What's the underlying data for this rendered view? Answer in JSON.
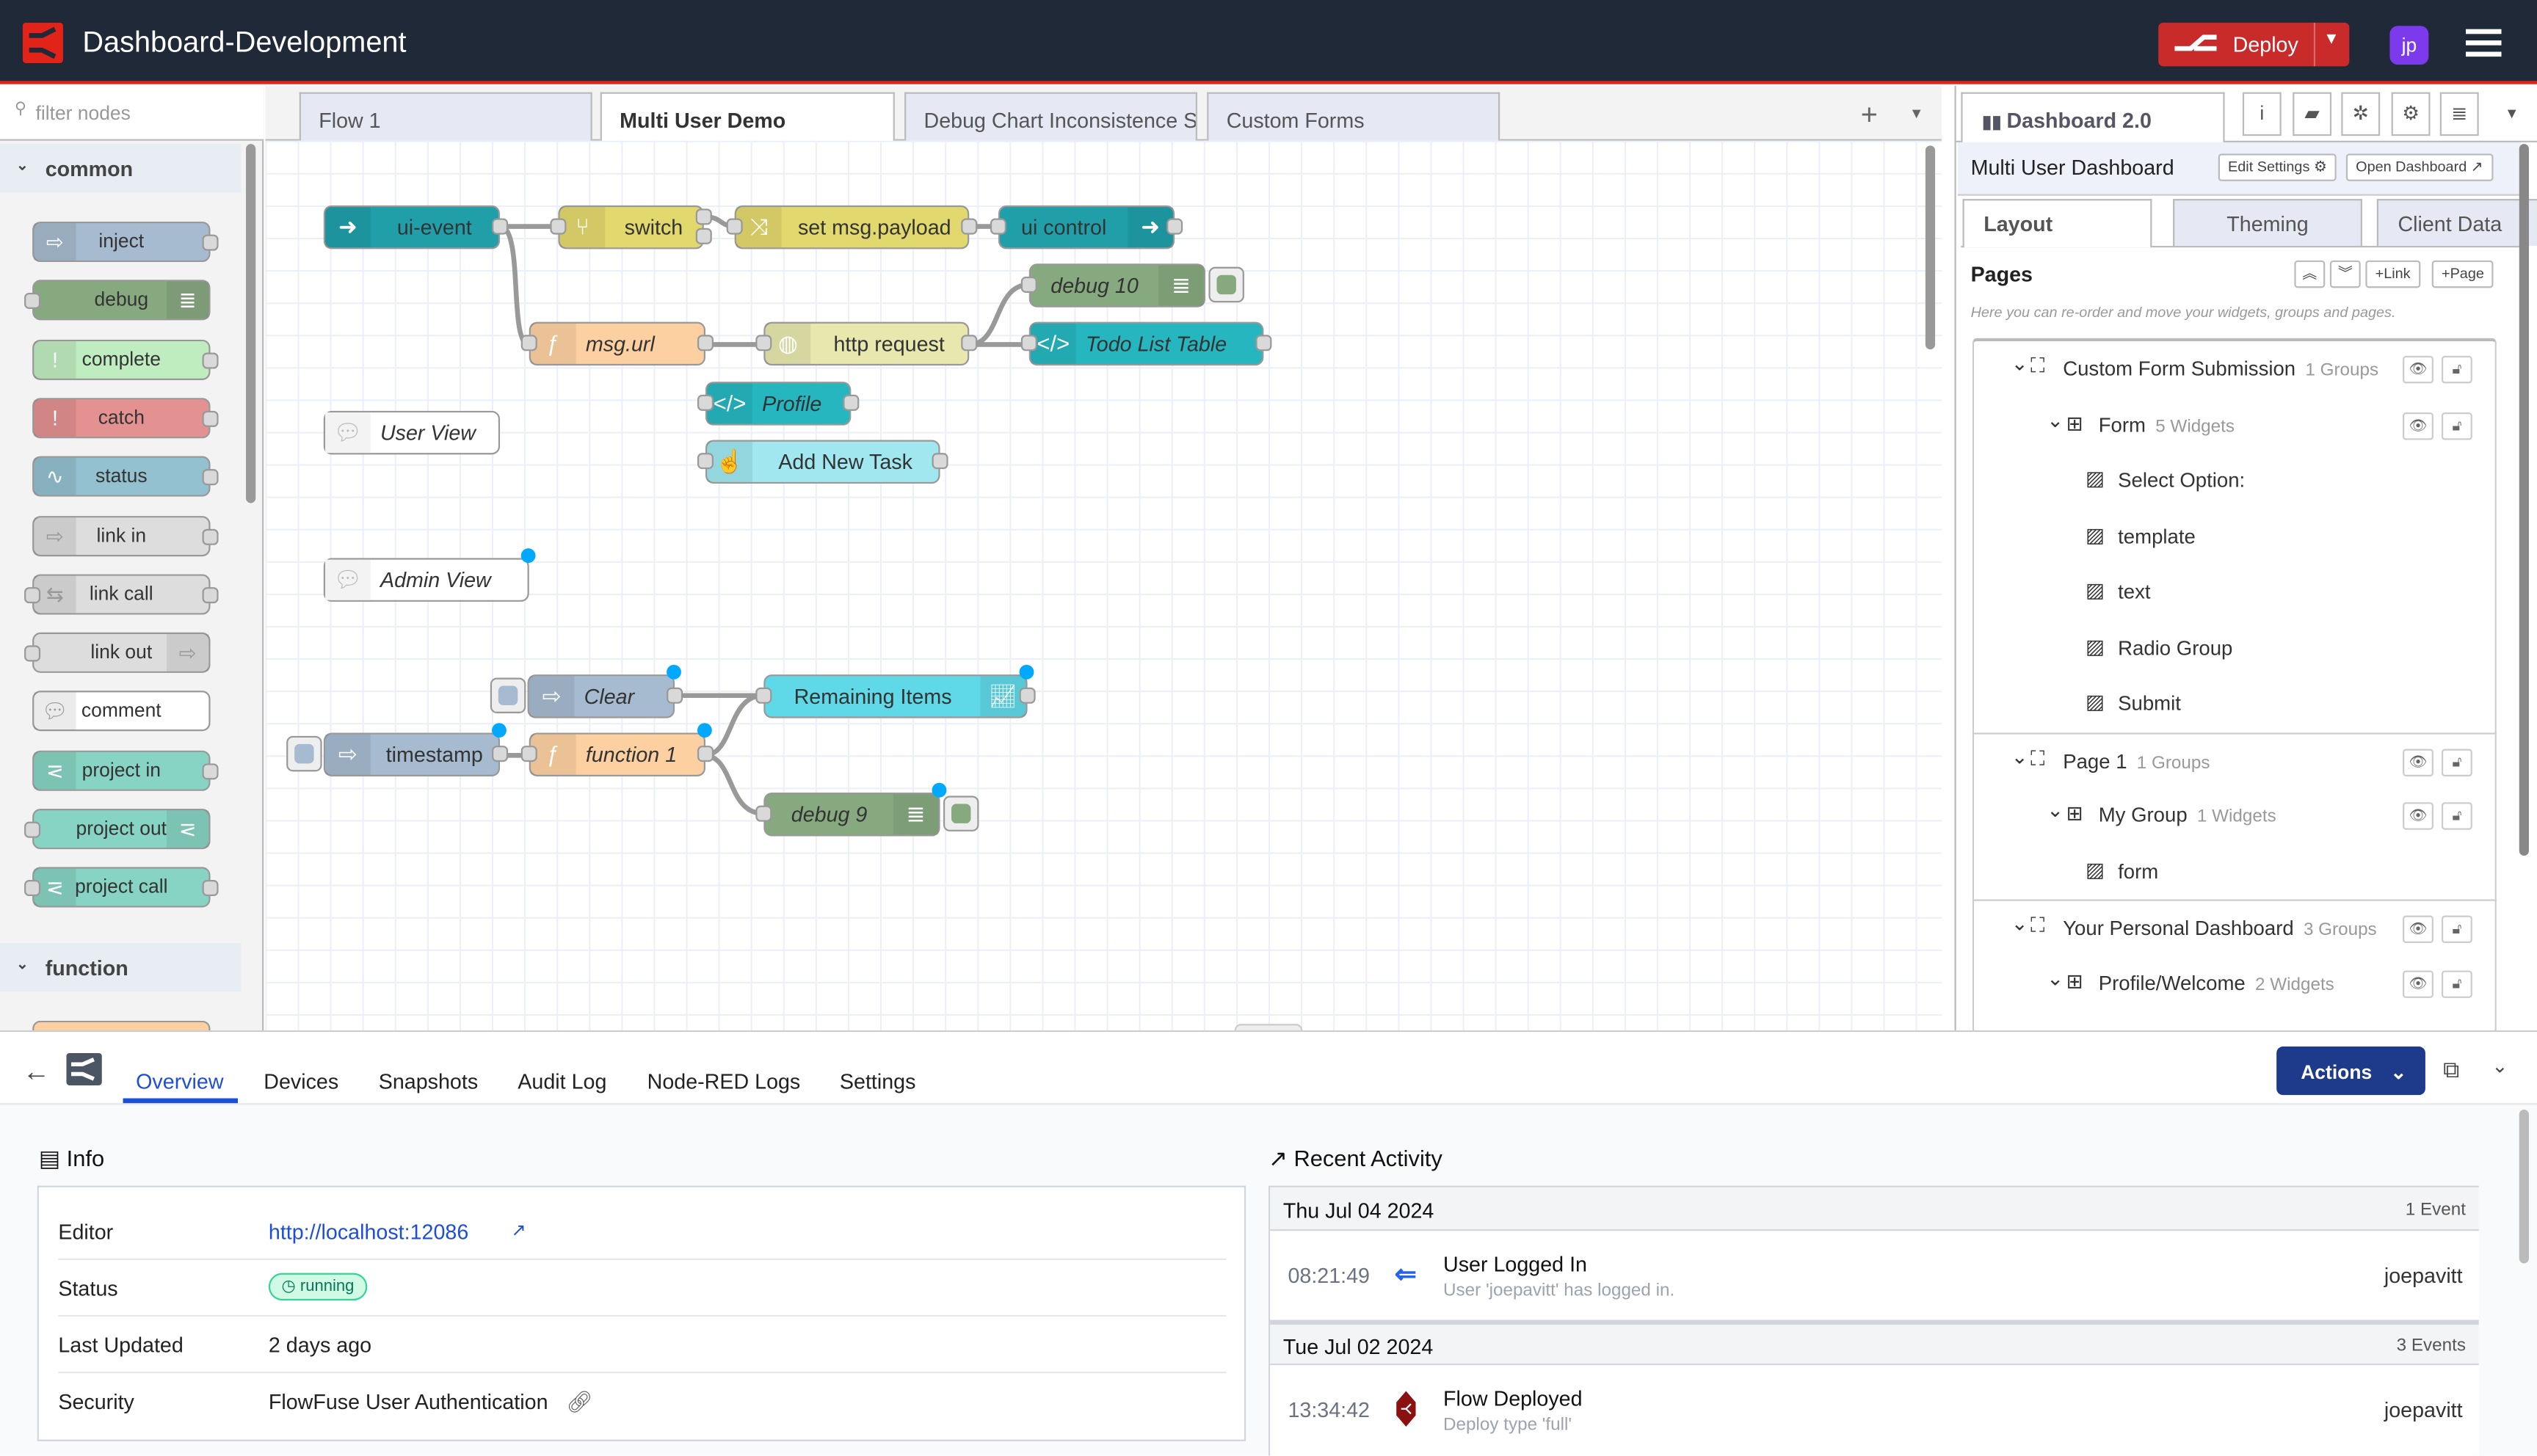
{
  "header": {
    "title": "Dashboard-Development",
    "deploy_label": "Deploy",
    "avatar_initials": "jp",
    "brand_color": "#e2231a"
  },
  "palette": {
    "filter_placeholder": "filter nodes",
    "categories": [
      {
        "label": "common"
      },
      {
        "label": "function"
      }
    ],
    "nodes": [
      {
        "label": "inject",
        "color": "#a6bbcf"
      },
      {
        "label": "debug",
        "color": "#87a980"
      },
      {
        "label": "complete",
        "color": "#c0edc0"
      },
      {
        "label": "catch",
        "color": "#e49191"
      },
      {
        "label": "status",
        "color": "#94c1d0"
      },
      {
        "label": "link in",
        "color": "#dddddd"
      },
      {
        "label": "link call",
        "color": "#dddddd"
      },
      {
        "label": "link out",
        "color": "#dddddd"
      },
      {
        "label": "comment",
        "color": "#ffffff"
      },
      {
        "label": "project in",
        "color": "#87d4c4"
      },
      {
        "label": "project out",
        "color": "#87d4c4"
      },
      {
        "label": "project call",
        "color": "#87d4c4"
      }
    ]
  },
  "flow_tabs": [
    {
      "label": "Flow 1"
    },
    {
      "label": "Multi User Demo",
      "active": true
    },
    {
      "label": "Debug Chart Inconsistence S"
    },
    {
      "label": "Custom Forms"
    }
  ],
  "canvas": {
    "nodes": [
      {
        "label": "ui-event",
        "type": "ui-event"
      },
      {
        "label": "switch",
        "type": "switch"
      },
      {
        "label": "set msg.payload",
        "type": "change"
      },
      {
        "label": "ui control",
        "type": "ui-control"
      },
      {
        "label": "debug 10",
        "type": "debug"
      },
      {
        "label": "msg.url",
        "type": "function"
      },
      {
        "label": "http request",
        "type": "http request"
      },
      {
        "label": "Todo List Table",
        "type": "ui-template"
      },
      {
        "label": "Profile",
        "type": "ui-template"
      },
      {
        "label": "Add New Task",
        "type": "ui-button"
      },
      {
        "label": "User View",
        "type": "comment"
      },
      {
        "label": "Admin View",
        "type": "comment"
      },
      {
        "label": "Clear",
        "type": "inject"
      },
      {
        "label": "Remaining Items",
        "type": "ui-chart"
      },
      {
        "label": "timestamp",
        "type": "inject"
      },
      {
        "label": "function 1",
        "type": "function"
      },
      {
        "label": "debug 9",
        "type": "debug"
      }
    ]
  },
  "sidebar": {
    "tab_label": "Dashboard 2.0",
    "dashboard_name": "Multi User Dashboard",
    "edit_settings": "Edit Settings",
    "open_dashboard": "Open Dashboard",
    "tabs": [
      {
        "label": "Layout",
        "active": true
      },
      {
        "label": "Theming"
      },
      {
        "label": "Client Data"
      }
    ],
    "pages_title": "Pages",
    "link_btn": "Link",
    "page_btn": "Page",
    "help": "Here you can re-order and move your widgets, groups and pages.",
    "tree": [
      {
        "label": "Custom Form Submission",
        "count": "1 Groups",
        "level": "page"
      },
      {
        "label": "Form",
        "count": "5 Widgets",
        "level": "group"
      },
      {
        "label": "Select Option:",
        "level": "widget"
      },
      {
        "label": "template",
        "level": "widget"
      },
      {
        "label": "text",
        "level": "widget"
      },
      {
        "label": "Radio Group",
        "level": "widget"
      },
      {
        "label": "Submit",
        "level": "widget"
      },
      {
        "label": "Page 1",
        "count": "1 Groups",
        "level": "page"
      },
      {
        "label": "My Group",
        "count": "1 Widgets",
        "level": "group"
      },
      {
        "label": "form",
        "level": "widget"
      },
      {
        "label": "Your Personal Dashboard",
        "count": "3 Groups",
        "level": "page"
      },
      {
        "label": "Profile/Welcome",
        "count": "2 Widgets",
        "level": "group"
      }
    ]
  },
  "bottom": {
    "tabs": [
      {
        "label": "Overview",
        "active": true
      },
      {
        "label": "Devices"
      },
      {
        "label": "Snapshots"
      },
      {
        "label": "Audit Log"
      },
      {
        "label": "Node-RED Logs"
      },
      {
        "label": "Settings"
      }
    ],
    "actions_label": "Actions",
    "info": {
      "title": "Info",
      "rows": [
        {
          "key": "Editor",
          "value": "http://localhost:12086"
        },
        {
          "key": "Status",
          "value": "running"
        },
        {
          "key": "Last Updated",
          "value": "2 days ago"
        },
        {
          "key": "Security",
          "value": "FlowFuse User Authentication"
        }
      ]
    },
    "activity": {
      "title": "Recent Activity",
      "days": [
        {
          "date": "Thu Jul 04 2024",
          "count": "1 Event",
          "events": [
            {
              "time": "08:21:49",
              "title": "User Logged In",
              "detail": "User 'joepavitt' has logged in.",
              "user": "joepavitt",
              "icon": "login-icon"
            }
          ]
        },
        {
          "date": "Tue Jul 02 2024",
          "count": "3 Events",
          "events": [
            {
              "time": "13:34:42",
              "title": "Flow Deployed",
              "detail": "Deploy type 'full'",
              "user": "joepavitt",
              "icon": "flow-deployed-icon"
            }
          ]
        }
      ]
    }
  }
}
